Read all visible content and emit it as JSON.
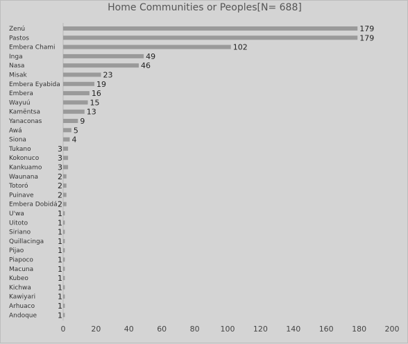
{
  "chart_data": {
    "type": "bar",
    "orientation": "horizontal",
    "title": "Home Communities or Peoples[N= 688]",
    "xlabel": "",
    "ylabel": "",
    "xlim": [
      0,
      200
    ],
    "x_ticks": [
      0,
      20,
      40,
      60,
      80,
      100,
      120,
      140,
      160,
      180,
      200
    ],
    "grid": false,
    "bar_color": "#9a9a9a",
    "categories": [
      "Zenú",
      "Pastos",
      "Embera Chami",
      "Inga",
      "Nasa",
      "Misak",
      "Embera Eyabida",
      "Embera",
      "Wayuú",
      "Kamëntsa",
      "Yanaconas",
      "Awá",
      "Siona",
      "Tukano",
      "Kokonuco",
      "Kankuamo",
      "Waunana",
      "Totoró",
      "Puinave",
      "Embera Dobidá",
      "U'wa",
      "Uitoto",
      "Siriano",
      "Quillacinga",
      "Pijao",
      "Piapoco",
      "Macuna",
      "Kubeo",
      "Kichwa",
      "Kawiyari",
      "Arhuaco",
      "Andoque"
    ],
    "values": [
      179,
      179,
      102,
      49,
      46,
      23,
      19,
      16,
      15,
      13,
      9,
      5,
      4,
      3,
      3,
      3,
      2,
      2,
      2,
      2,
      1,
      1,
      1,
      1,
      1,
      1,
      1,
      1,
      1,
      1,
      1,
      1
    ]
  }
}
